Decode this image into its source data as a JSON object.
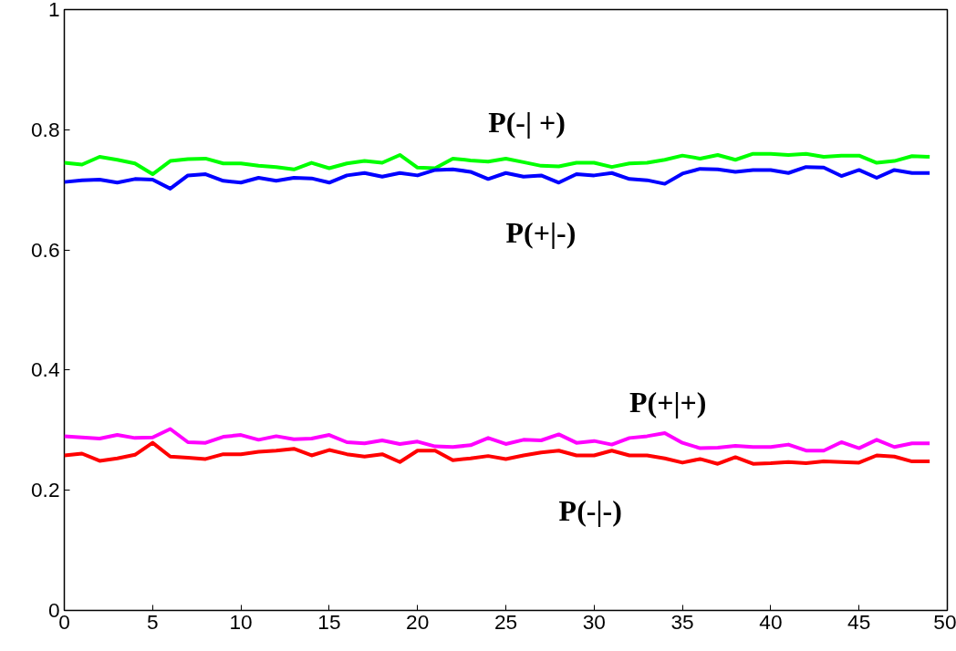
{
  "chart_data": {
    "type": "line",
    "x": [
      0,
      1,
      2,
      3,
      4,
      5,
      6,
      7,
      8,
      9,
      10,
      11,
      12,
      13,
      14,
      15,
      16,
      17,
      18,
      19,
      20,
      21,
      22,
      23,
      24,
      25,
      26,
      27,
      28,
      29,
      30,
      31,
      32,
      33,
      34,
      35,
      36,
      37,
      38,
      39,
      40,
      41,
      42,
      43,
      44,
      45,
      46,
      47,
      48,
      49
    ],
    "xlim": [
      0,
      50
    ],
    "ylim": [
      0,
      1
    ],
    "xticks": [
      0,
      5,
      10,
      15,
      20,
      25,
      30,
      35,
      40,
      45,
      50
    ],
    "yticks": [
      0,
      0.2,
      0.4,
      0.6,
      0.8,
      1
    ],
    "grid": false,
    "series": [
      {
        "name": "P(-| +)",
        "color": "#00ff00",
        "values": [
          0.745,
          0.742,
          0.755,
          0.75,
          0.744,
          0.726,
          0.748,
          0.751,
          0.752,
          0.744,
          0.744,
          0.74,
          0.738,
          0.734,
          0.745,
          0.736,
          0.744,
          0.748,
          0.745,
          0.758,
          0.737,
          0.736,
          0.752,
          0.749,
          0.747,
          0.752,
          0.746,
          0.74,
          0.739,
          0.745,
          0.745,
          0.738,
          0.744,
          0.745,
          0.75,
          0.757,
          0.752,
          0.758,
          0.75,
          0.76,
          0.76,
          0.758,
          0.76,
          0.755,
          0.757,
          0.757,
          0.745,
          0.748,
          0.756,
          0.755
        ]
      },
      {
        "name": "P(+|-)",
        "color": "#0000ff",
        "values": [
          0.713,
          0.716,
          0.717,
          0.712,
          0.718,
          0.717,
          0.702,
          0.724,
          0.726,
          0.715,
          0.712,
          0.72,
          0.715,
          0.72,
          0.719,
          0.712,
          0.724,
          0.728,
          0.722,
          0.728,
          0.724,
          0.733,
          0.734,
          0.73,
          0.718,
          0.728,
          0.722,
          0.724,
          0.712,
          0.726,
          0.724,
          0.728,
          0.718,
          0.716,
          0.71,
          0.727,
          0.735,
          0.734,
          0.73,
          0.733,
          0.733,
          0.728,
          0.738,
          0.737,
          0.723,
          0.733,
          0.72,
          0.733,
          0.728,
          0.728
        ]
      },
      {
        "name": "P(+|+)",
        "color": "#ff00ff",
        "values": [
          0.29,
          0.288,
          0.286,
          0.292,
          0.287,
          0.288,
          0.302,
          0.28,
          0.279,
          0.289,
          0.292,
          0.284,
          0.29,
          0.285,
          0.286,
          0.292,
          0.28,
          0.278,
          0.283,
          0.277,
          0.281,
          0.273,
          0.272,
          0.275,
          0.287,
          0.277,
          0.284,
          0.283,
          0.293,
          0.279,
          0.282,
          0.276,
          0.287,
          0.29,
          0.295,
          0.279,
          0.27,
          0.271,
          0.274,
          0.272,
          0.272,
          0.276,
          0.266,
          0.266,
          0.28,
          0.27,
          0.284,
          0.272,
          0.278,
          0.278
        ]
      },
      {
        "name": "P(-|-)",
        "color": "#ff0000",
        "values": [
          0.258,
          0.261,
          0.249,
          0.253,
          0.259,
          0.279,
          0.256,
          0.254,
          0.252,
          0.26,
          0.26,
          0.264,
          0.266,
          0.269,
          0.258,
          0.267,
          0.26,
          0.256,
          0.26,
          0.247,
          0.266,
          0.266,
          0.25,
          0.253,
          0.257,
          0.252,
          0.258,
          0.263,
          0.266,
          0.258,
          0.258,
          0.266,
          0.258,
          0.258,
          0.253,
          0.246,
          0.252,
          0.244,
          0.255,
          0.244,
          0.245,
          0.247,
          0.245,
          0.248,
          0.247,
          0.246,
          0.258,
          0.256,
          0.248,
          0.248
        ]
      }
    ]
  }
}
